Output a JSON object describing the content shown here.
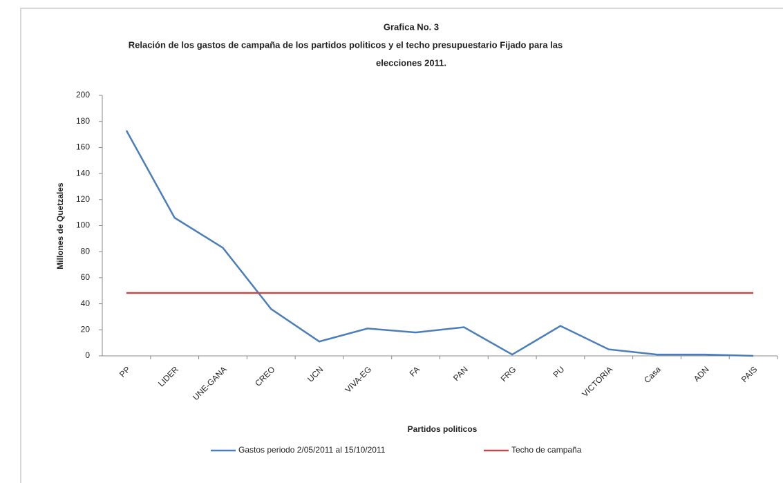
{
  "chart_data": {
    "type": "line",
    "title": "Grafica No. 3",
    "subtitle": [
      "Relación de los gastos de campaña  de los partidos politicos y el techo presupuestario Fijado  para las",
      "elecciones 2011."
    ],
    "x_label": "Partidos politicos",
    "y_label": "Millones de Quetzales",
    "categories": [
      "PP",
      "LIDER",
      "UNE-GANA",
      "CREO",
      "UCN",
      "VIVA-EG",
      "FA",
      "PAN",
      "FRG",
      "PU",
      "VICTORIA",
      "Casa",
      "ADN",
      "PAIS"
    ],
    "series": [
      {
        "name": "Gastos periodo 2/05/2011 al 15/10/2011",
        "color": "#4a7ebb",
        "values": [
          173,
          106,
          83,
          36,
          11,
          21,
          18,
          22,
          1,
          23,
          5,
          1,
          1,
          0
        ]
      },
      {
        "name": "Techo de campaña",
        "color": "#be4b48",
        "values": [
          48.3,
          48.3,
          48.3,
          48.3,
          48.3,
          48.3,
          48.3,
          48.3,
          48.3,
          48.3,
          48.3,
          48.3,
          48.3,
          48.3
        ]
      }
    ],
    "ylim": [
      0,
      200
    ],
    "yticks": [
      0,
      20,
      40,
      60,
      80,
      100,
      120,
      140,
      160,
      180,
      200
    ],
    "legend": "bottom"
  }
}
